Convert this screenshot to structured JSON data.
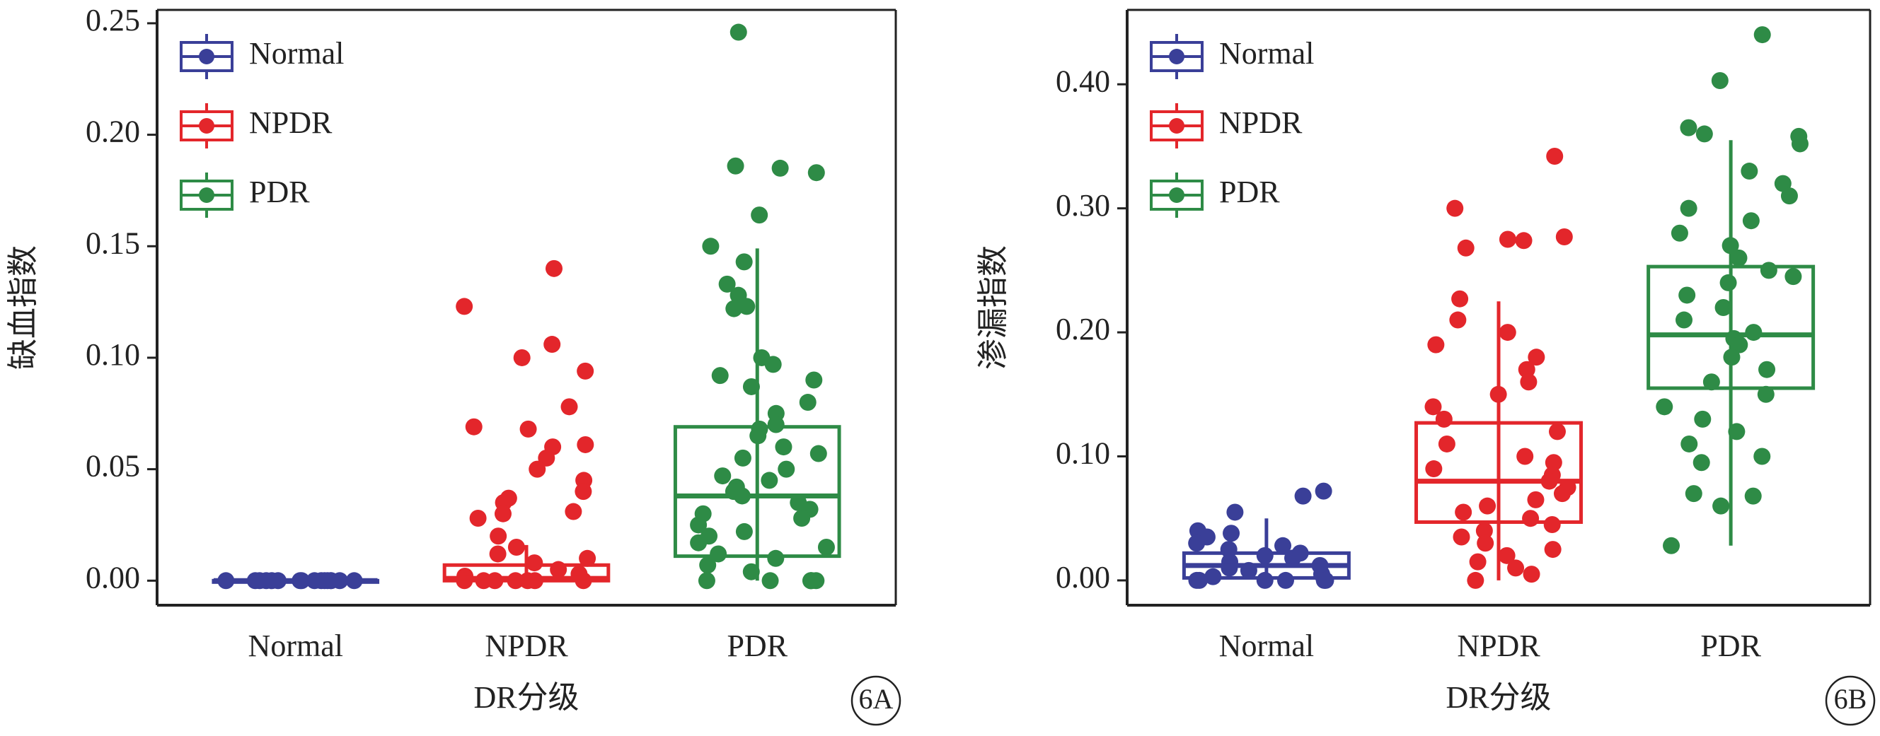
{
  "chart_data": [
    {
      "type": "box",
      "ylabel": "缺血指数",
      "xlabel": "DR分级",
      "annotation": "6A",
      "categories": [
        "Normal",
        "NPDR",
        "PDR"
      ],
      "ylim": [
        -0.011,
        0.256
      ],
      "yticks": [
        {
          "value": 0,
          "label": "0.00"
        },
        {
          "value": 0.05,
          "label": "0.05"
        },
        {
          "value": 0.1,
          "label": "0.10"
        },
        {
          "value": 0.15,
          "label": "0.15"
        },
        {
          "value": 0.2,
          "label": "0.20"
        },
        {
          "value": 0.25,
          "label": "0.25"
        }
      ],
      "series": [
        {
          "name": "Normal",
          "color": "#3a3f98",
          "whislo": 0,
          "q1": 0,
          "med": 0,
          "q3": 0,
          "whishi": 0,
          "points": [
            0,
            0,
            0,
            0,
            0,
            0,
            0,
            0,
            0,
            0,
            0,
            0,
            0,
            0,
            0,
            0
          ]
        },
        {
          "name": "NPDR",
          "color": "#e3262b",
          "whislo": 0,
          "q1": 0,
          "med": 0.001,
          "q3": 0.007,
          "whishi": 0.016,
          "points": [
            0.14,
            0.123,
            0.106,
            0.1,
            0.094,
            0.078,
            0.069,
            0.068,
            0.061,
            0.06,
            0.055,
            0.05,
            0.045,
            0.04,
            0.037,
            0.035,
            0.031,
            0.03,
            0.028,
            0.02,
            0.015,
            0.012,
            0.01,
            0.008,
            0.005,
            0.003,
            0.002,
            0,
            0,
            0,
            0,
            0,
            0,
            0
          ]
        },
        {
          "name": "PDR",
          "color": "#2e8b46",
          "whislo": 0,
          "q1": 0.011,
          "med": 0.038,
          "q3": 0.069,
          "whishi": 0.149,
          "points": [
            0.246,
            0.186,
            0.185,
            0.183,
            0.164,
            0.15,
            0.143,
            0.133,
            0.128,
            0.123,
            0.122,
            0.1,
            0.097,
            0.092,
            0.09,
            0.087,
            0.08,
            0.075,
            0.07,
            0.068,
            0.065,
            0.06,
            0.057,
            0.055,
            0.05,
            0.047,
            0.045,
            0.042,
            0.04,
            0.038,
            0.035,
            0.032,
            0.03,
            0.028,
            0.025,
            0.022,
            0.02,
            0.017,
            0.015,
            0.012,
            0.01,
            0.007,
            0.004,
            0,
            0,
            0,
            0,
            0,
            0
          ]
        }
      ]
    },
    {
      "type": "box",
      "ylabel": "渗漏指数",
      "xlabel": "DR分级",
      "annotation": "6B",
      "categories": [
        "Normal",
        "NPDR",
        "PDR"
      ],
      "ylim": [
        -0.02,
        0.46
      ],
      "yticks": [
        {
          "value": 0,
          "label": "0.00"
        },
        {
          "value": 0.1,
          "label": "0.10"
        },
        {
          "value": 0.2,
          "label": "0.20"
        },
        {
          "value": 0.3,
          "label": "0.30"
        },
        {
          "value": 0.4,
          "label": "0.40"
        }
      ],
      "series": [
        {
          "name": "Normal",
          "color": "#3a3f98",
          "whislo": 0,
          "q1": 0.002,
          "med": 0.012,
          "q3": 0.022,
          "whishi": 0.05,
          "points": [
            0.072,
            0.068,
            0.055,
            0.04,
            0.038,
            0.035,
            0.03,
            0.028,
            0.025,
            0.022,
            0.02,
            0.018,
            0.015,
            0.012,
            0.01,
            0.008,
            0.005,
            0.003,
            0,
            0,
            0,
            0,
            0,
            0
          ]
        },
        {
          "name": "NPDR",
          "color": "#e3262b",
          "whislo": 0,
          "q1": 0.047,
          "med": 0.08,
          "q3": 0.127,
          "whishi": 0.225,
          "points": [
            0.342,
            0.3,
            0.277,
            0.275,
            0.274,
            0.268,
            0.227,
            0.21,
            0.2,
            0.19,
            0.18,
            0.17,
            0.16,
            0.15,
            0.14,
            0.13,
            0.12,
            0.11,
            0.1,
            0.095,
            0.09,
            0.085,
            0.08,
            0.075,
            0.07,
            0.065,
            0.06,
            0.055,
            0.05,
            0.045,
            0.04,
            0.035,
            0.03,
            0.025,
            0.02,
            0.015,
            0.01,
            0.005,
            0
          ]
        },
        {
          "name": "PDR",
          "color": "#2e8b46",
          "whislo": 0.028,
          "q1": 0.155,
          "med": 0.198,
          "q3": 0.253,
          "whishi": 0.355,
          "points": [
            0.44,
            0.403,
            0.365,
            0.36,
            0.358,
            0.352,
            0.33,
            0.32,
            0.31,
            0.3,
            0.29,
            0.28,
            0.27,
            0.26,
            0.25,
            0.245,
            0.24,
            0.23,
            0.22,
            0.21,
            0.2,
            0.195,
            0.19,
            0.18,
            0.17,
            0.16,
            0.15,
            0.14,
            0.13,
            0.12,
            0.11,
            0.1,
            0.095,
            0.07,
            0.068,
            0.06,
            0.028
          ]
        }
      ]
    }
  ]
}
